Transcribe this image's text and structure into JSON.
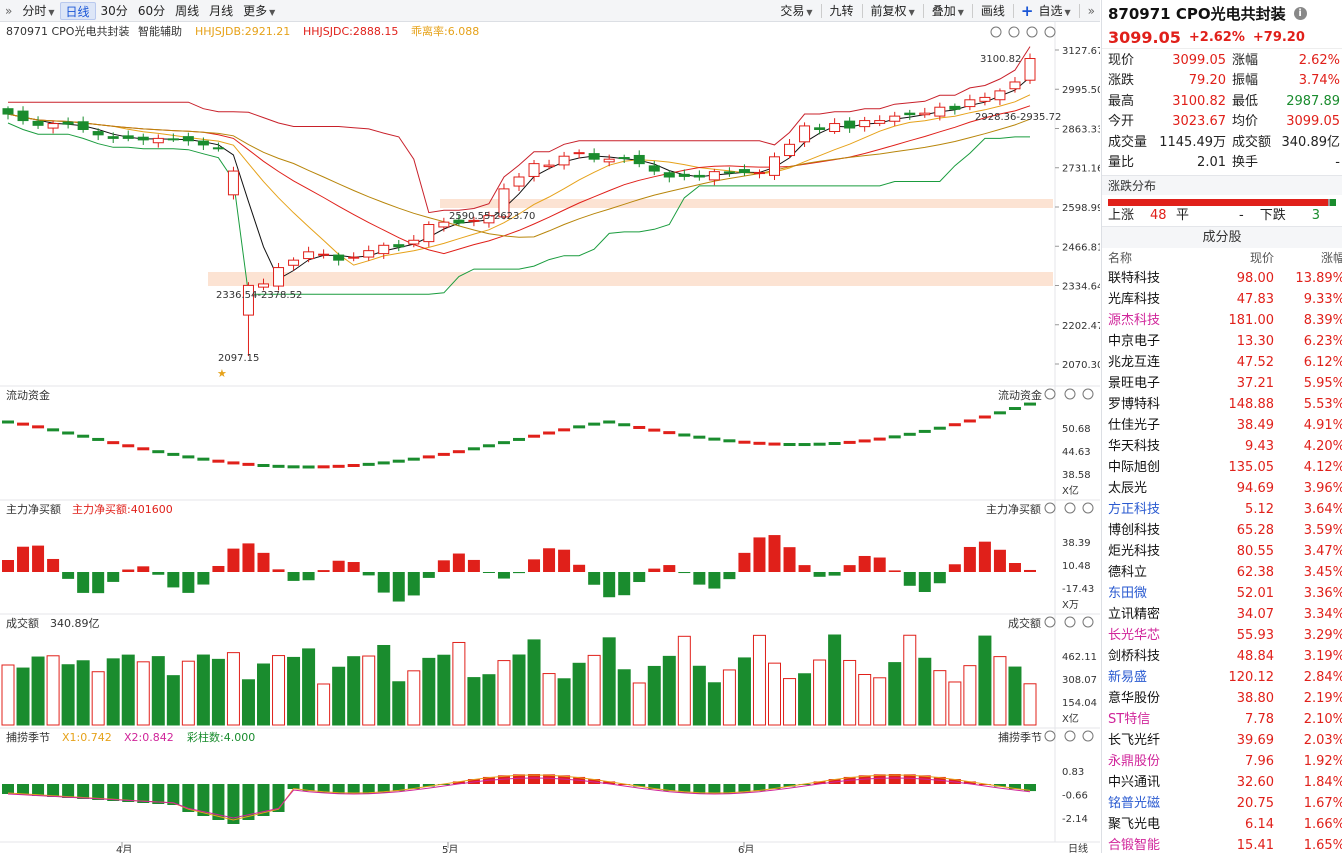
{
  "toolbar": {
    "left": [
      {
        "label": "分时",
        "caret": true
      },
      {
        "label": "日线",
        "active": true
      },
      {
        "label": "30分"
      },
      {
        "label": "60分"
      },
      {
        "label": "周线"
      },
      {
        "label": "月线"
      },
      {
        "label": "更多",
        "caret": true
      }
    ],
    "right": [
      {
        "label": "交易",
        "caret": true
      },
      {
        "label": "九转"
      },
      {
        "label": "前复权",
        "caret": true
      },
      {
        "label": "叠加",
        "caret": true
      },
      {
        "label": "画线"
      },
      {
        "label": "自选",
        "caret": true
      }
    ]
  },
  "main_pane": {
    "symbol": "870971 CPO光电共封装",
    "assist": "智能辅助",
    "ind1": "HHJSJDB:2921.21",
    "ind2": "HHJSJDC:2888.15",
    "ind3": "乖离率:6.088",
    "price_axis": [
      "3127.67",
      "2995.50",
      "2863.33",
      "2731.16",
      "2598.99",
      "2466.81",
      "2334.64",
      "2202.47",
      "2070.30"
    ],
    "ann_high": "3100.82",
    "ann_low": "2097.15",
    "ann_zone1": "2336.54-2378.52",
    "ann_zone2": "2590.55-2623.70",
    "ann_zone3": "2928.36-2935.72"
  },
  "pane_flow": {
    "title": "流动资金",
    "axis": [
      "50.68",
      "44.63",
      "38.58"
    ],
    "unit": "X亿"
  },
  "pane_net": {
    "title": "主力净买额",
    "ind": "主力净买额:401600",
    "axis": [
      "38.39",
      "10.48",
      "-17.43"
    ],
    "unit": "X万"
  },
  "pane_vol": {
    "title": "成交额",
    "ind": "340.89亿",
    "axis": [
      "462.11",
      "308.07",
      "154.04"
    ],
    "unit": "X亿"
  },
  "pane_season": {
    "title": "捕捞季节",
    "x1": "X1:0.742",
    "x2": "X2:0.842",
    "bars": "彩柱数:4.000",
    "axis": [
      "0.83",
      "-0.66",
      "-2.14"
    ]
  },
  "x_axis": [
    "4月",
    "5月",
    "6月"
  ],
  "x_axis_right": "日线",
  "chart_data": {
    "type": "candlestick",
    "title": "870971 CPO光电共封装",
    "ylim": [
      2070.3,
      3127.67
    ],
    "annotations": [
      "3100.82",
      "2097.15",
      "2336.54-2378.52",
      "2590.55-2623.70",
      "2928.36-2935.72"
    ]
  },
  "quote": {
    "name": "870971 CPO光电共封装",
    "price": "3099.05",
    "pct": "+2.62%",
    "chg": "+79.20",
    "rows": [
      [
        "现价",
        "3099.05",
        "涨幅",
        "2.62%"
      ],
      [
        "涨跌",
        "79.20",
        "振幅",
        "3.74%"
      ],
      [
        "最高",
        "3100.82",
        "最低",
        "2987.89"
      ],
      [
        "今开",
        "3023.67",
        "均价",
        "3099.05"
      ],
      [
        "成交量",
        "1145.49万",
        "成交额",
        "340.89亿"
      ],
      [
        "量比",
        "2.01",
        "换手",
        "-"
      ]
    ]
  },
  "distribution": {
    "title": "涨跌分布",
    "up_label": "上涨",
    "up": "48",
    "flat_label": "平",
    "flat": "-",
    "down_label": "下跌",
    "down": "3"
  },
  "components": {
    "title": "成分股",
    "cols": [
      "名称",
      "现价",
      "涨幅"
    ],
    "rows": [
      {
        "name": "联特科技",
        "price": "98.00",
        "pct": "13.89%",
        "hl": ""
      },
      {
        "name": "光库科技",
        "price": "47.83",
        "pct": "9.33%",
        "hl": ""
      },
      {
        "name": "源杰科技",
        "price": "181.00",
        "pct": "8.39%",
        "hl": "pink"
      },
      {
        "name": "中京电子",
        "price": "13.30",
        "pct": "6.23%",
        "hl": ""
      },
      {
        "name": "兆龙互连",
        "price": "47.52",
        "pct": "6.12%",
        "hl": ""
      },
      {
        "name": "景旺电子",
        "price": "37.21",
        "pct": "5.95%",
        "hl": ""
      },
      {
        "name": "罗博特科",
        "price": "148.88",
        "pct": "5.53%",
        "hl": ""
      },
      {
        "name": "仕佳光子",
        "price": "38.49",
        "pct": "4.91%",
        "hl": ""
      },
      {
        "name": "华天科技",
        "price": "9.43",
        "pct": "4.20%",
        "hl": ""
      },
      {
        "name": "中际旭创",
        "price": "135.05",
        "pct": "4.12%",
        "hl": ""
      },
      {
        "name": "太辰光",
        "price": "94.69",
        "pct": "3.96%",
        "hl": ""
      },
      {
        "name": "方正科技",
        "price": "5.12",
        "pct": "3.64%",
        "hl": "blue"
      },
      {
        "name": "博创科技",
        "price": "65.28",
        "pct": "3.59%",
        "hl": ""
      },
      {
        "name": "炬光科技",
        "price": "80.55",
        "pct": "3.47%",
        "hl": ""
      },
      {
        "name": "德科立",
        "price": "62.38",
        "pct": "3.45%",
        "hl": ""
      },
      {
        "name": "东田微",
        "price": "52.01",
        "pct": "3.36%",
        "hl": "blue"
      },
      {
        "name": "立讯精密",
        "price": "34.07",
        "pct": "3.34%",
        "hl": ""
      },
      {
        "name": "长光华芯",
        "price": "55.93",
        "pct": "3.29%",
        "hl": "pink"
      },
      {
        "name": "剑桥科技",
        "price": "48.84",
        "pct": "3.19%",
        "hl": ""
      },
      {
        "name": "新易盛",
        "price": "120.12",
        "pct": "2.84%",
        "hl": "blue"
      },
      {
        "name": "意华股份",
        "price": "38.80",
        "pct": "2.19%",
        "hl": ""
      },
      {
        "name": "ST特信",
        "price": "7.78",
        "pct": "2.10%",
        "hl": "pink"
      },
      {
        "name": "长飞光纤",
        "price": "39.69",
        "pct": "2.03%",
        "hl": ""
      },
      {
        "name": "永鼎股份",
        "price": "7.96",
        "pct": "1.92%",
        "hl": "pink"
      },
      {
        "name": "中兴通讯",
        "price": "32.60",
        "pct": "1.84%",
        "hl": ""
      },
      {
        "name": "铭普光磁",
        "price": "20.75",
        "pct": "1.67%",
        "hl": "blue"
      },
      {
        "name": "聚飞光电",
        "price": "6.14",
        "pct": "1.66%",
        "hl": ""
      },
      {
        "name": "合锻智能",
        "price": "15.41",
        "pct": "1.65%",
        "hl": "pink"
      }
    ]
  }
}
